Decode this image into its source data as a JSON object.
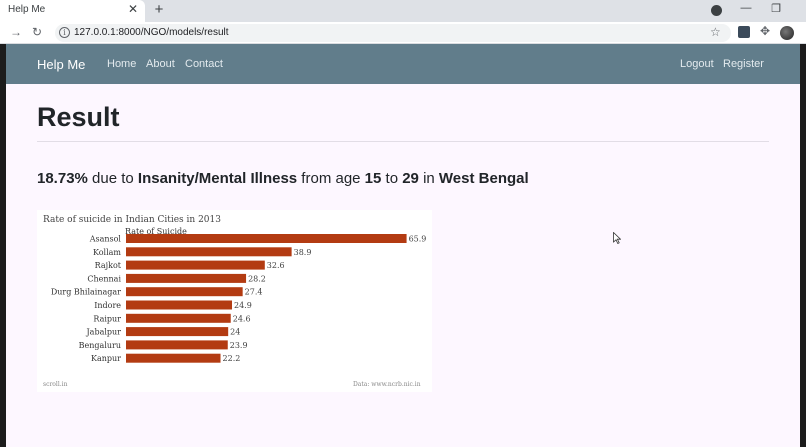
{
  "browser": {
    "tab_title": "Help Me",
    "tab_close": "✕",
    "new_tab": "+",
    "url": "127.0.0.1:8000/NGO/models/result",
    "minimize": "—",
    "restore": "❐"
  },
  "navbar": {
    "brand": "Help Me",
    "links": [
      "Home",
      "About",
      "Contact"
    ],
    "right_links": [
      "Logout",
      "Register"
    ]
  },
  "page": {
    "title": "Result",
    "summary": {
      "percent": "18.73%",
      "text1": " due to ",
      "cause": "Insanity/Mental Illness",
      "text2": " from age ",
      "age_from": "15",
      "text3": " to ",
      "age_to": "29",
      "text4": " in ",
      "state": "West Bengal"
    }
  },
  "chart_data": {
    "type": "bar",
    "orientation": "horizontal",
    "title": "Rate of suicide in Indian Cities in 2013",
    "subtitle": "Rate of Suicide",
    "categories": [
      "Asansol",
      "Kollam",
      "Rajkot",
      "Chennai",
      "Durg Bhilainagar",
      "Indore",
      "Raipur",
      "Jabalpur",
      "Bengaluru",
      "Kanpur"
    ],
    "values": [
      65.9,
      38.9,
      32.6,
      28.2,
      27.4,
      24.9,
      24.6,
      24,
      23.9,
      22.2
    ],
    "value_labels": [
      "65.9",
      "38.9",
      "32.6",
      "28.2",
      "27.4",
      "24.9",
      "24.6",
      "24",
      "23.9",
      "22.2"
    ],
    "bar_color": "#b33b12",
    "footer_left": "scroll.in",
    "footer_right": "Data: www.ncrb.nic.in"
  },
  "colors": {
    "navbar": "#617d8b",
    "page_bg": "#fdf7ff"
  }
}
